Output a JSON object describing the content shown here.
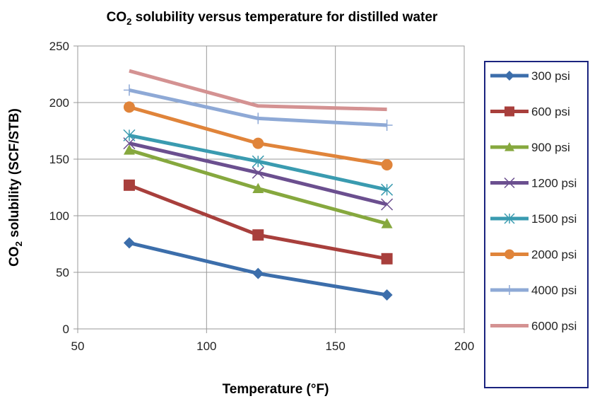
{
  "chart_data": {
    "type": "line",
    "title": "CO2 solubility versus temperature for distilled water",
    "title_parts": {
      "pre": "CO",
      "sub": "2",
      "post": " solubility versus temperature for distilled water"
    },
    "xlabel": "Temperature (°F)",
    "ylabel": "CO2 solubility (SCF/STB)",
    "ylabel_parts": {
      "pre": "CO",
      "sub": "2",
      "post": " solubility (SCF/STB)"
    },
    "xlim": [
      50,
      200
    ],
    "ylim": [
      0,
      250
    ],
    "xticks": [
      "50",
      "100",
      "150",
      "200"
    ],
    "yticks": [
      "0",
      "50",
      "100",
      "150",
      "200",
      "250"
    ],
    "grid": true,
    "legend_position": "right",
    "x": [
      70,
      120,
      170
    ],
    "series": [
      {
        "name": "300 psi",
        "values": [
          76,
          49,
          30
        ],
        "color": "#3c6eab",
        "marker": "diamond"
      },
      {
        "name": "600 psi",
        "values": [
          127,
          83,
          62
        ],
        "color": "#a83f3c",
        "marker": "square"
      },
      {
        "name": "900 psi",
        "values": [
          158,
          124,
          93
        ],
        "color": "#86a83e",
        "marker": "triangle"
      },
      {
        "name": "1200 psi",
        "values": [
          164,
          138,
          110
        ],
        "color": "#6b4f8f",
        "marker": "x"
      },
      {
        "name": "1500 psi",
        "values": [
          171,
          148,
          123
        ],
        "color": "#3a9bb0",
        "marker": "star"
      },
      {
        "name": "2000 psi",
        "values": [
          196,
          164,
          145
        ],
        "color": "#e0843a",
        "marker": "circle"
      },
      {
        "name": "4000 psi",
        "values": [
          211,
          186,
          180
        ],
        "color": "#8ea9d6",
        "marker": "plus"
      },
      {
        "name": "6000 psi",
        "values": [
          228,
          197,
          194
        ],
        "color": "#d49292",
        "marker": "none"
      }
    ]
  }
}
